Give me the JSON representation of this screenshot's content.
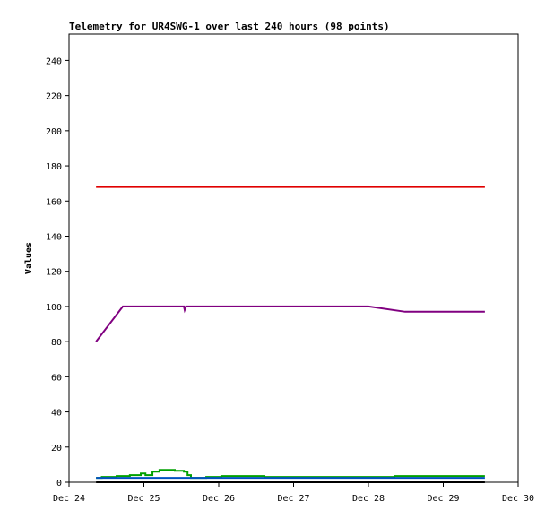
{
  "chart_data": {
    "type": "line",
    "title": "Telemetry for UR4SWG-1 over last 240 hours (98 points)",
    "ylabel": "Values",
    "xlabel": "",
    "ylim": [
      0,
      255
    ],
    "xlim": [
      "Dec 24 00:00",
      "Dec 30 00:00"
    ],
    "yticks": [
      0,
      20,
      40,
      60,
      80,
      100,
      120,
      140,
      160,
      180,
      200,
      220,
      240
    ],
    "xticks": [
      "Dec 24",
      "Dec 25",
      "Dec 26",
      "Dec 27",
      "Dec 28",
      "Dec 29",
      "Dec 30"
    ],
    "grid": false,
    "series": [
      {
        "color": "#e00000",
        "step": false,
        "points": [
          [
            "Dec 24 08:40",
            168
          ],
          [
            "Dec 29 13:20",
            168
          ]
        ]
      },
      {
        "color": "#800080",
        "step": false,
        "points": [
          [
            "Dec 24 08:40",
            80
          ],
          [
            "Dec 24 17:15",
            100
          ],
          [
            "Dec 25 12:50",
            100
          ],
          [
            "Dec 25 13:05",
            98
          ],
          [
            "Dec 25 13:30",
            100
          ],
          [
            "Dec 28 00:00",
            100
          ],
          [
            "Dec 28 11:45",
            97
          ],
          [
            "Dec 29 13:20",
            97
          ]
        ]
      },
      {
        "color": "#00a000",
        "step": true,
        "points": [
          [
            "Dec 24 08:40",
            2.5
          ],
          [
            "Dec 24 10:30",
            3
          ],
          [
            "Dec 24 15:15",
            3.5
          ],
          [
            "Dec 24 19:30",
            4
          ],
          [
            "Dec 24 23:00",
            5
          ],
          [
            "Dec 25 00:30",
            4
          ],
          [
            "Dec 25 02:45",
            6
          ],
          [
            "Dec 25 05:00",
            7
          ],
          [
            "Dec 25 09:55",
            6.5
          ],
          [
            "Dec 25 12:50",
            6
          ],
          [
            "Dec 25 14:00",
            4
          ],
          [
            "Dec 25 15:05",
            2.5
          ],
          [
            "Dec 25 20:00",
            3
          ],
          [
            "Dec 26 00:50",
            3.5
          ],
          [
            "Dec 26 14:40",
            3
          ],
          [
            "Dec 28 08:20",
            3.5
          ],
          [
            "Dec 29 13:20",
            3.5
          ]
        ]
      },
      {
        "color": "#0050c0",
        "step": false,
        "points": [
          [
            "Dec 24 08:40",
            2.5
          ],
          [
            "Dec 29 13:20",
            2.5
          ]
        ]
      },
      {
        "color": "#000000",
        "step": false,
        "points": [
          [
            "Dec 24 08:40",
            0
          ],
          [
            "Dec 29 13:20",
            0
          ]
        ]
      }
    ]
  }
}
